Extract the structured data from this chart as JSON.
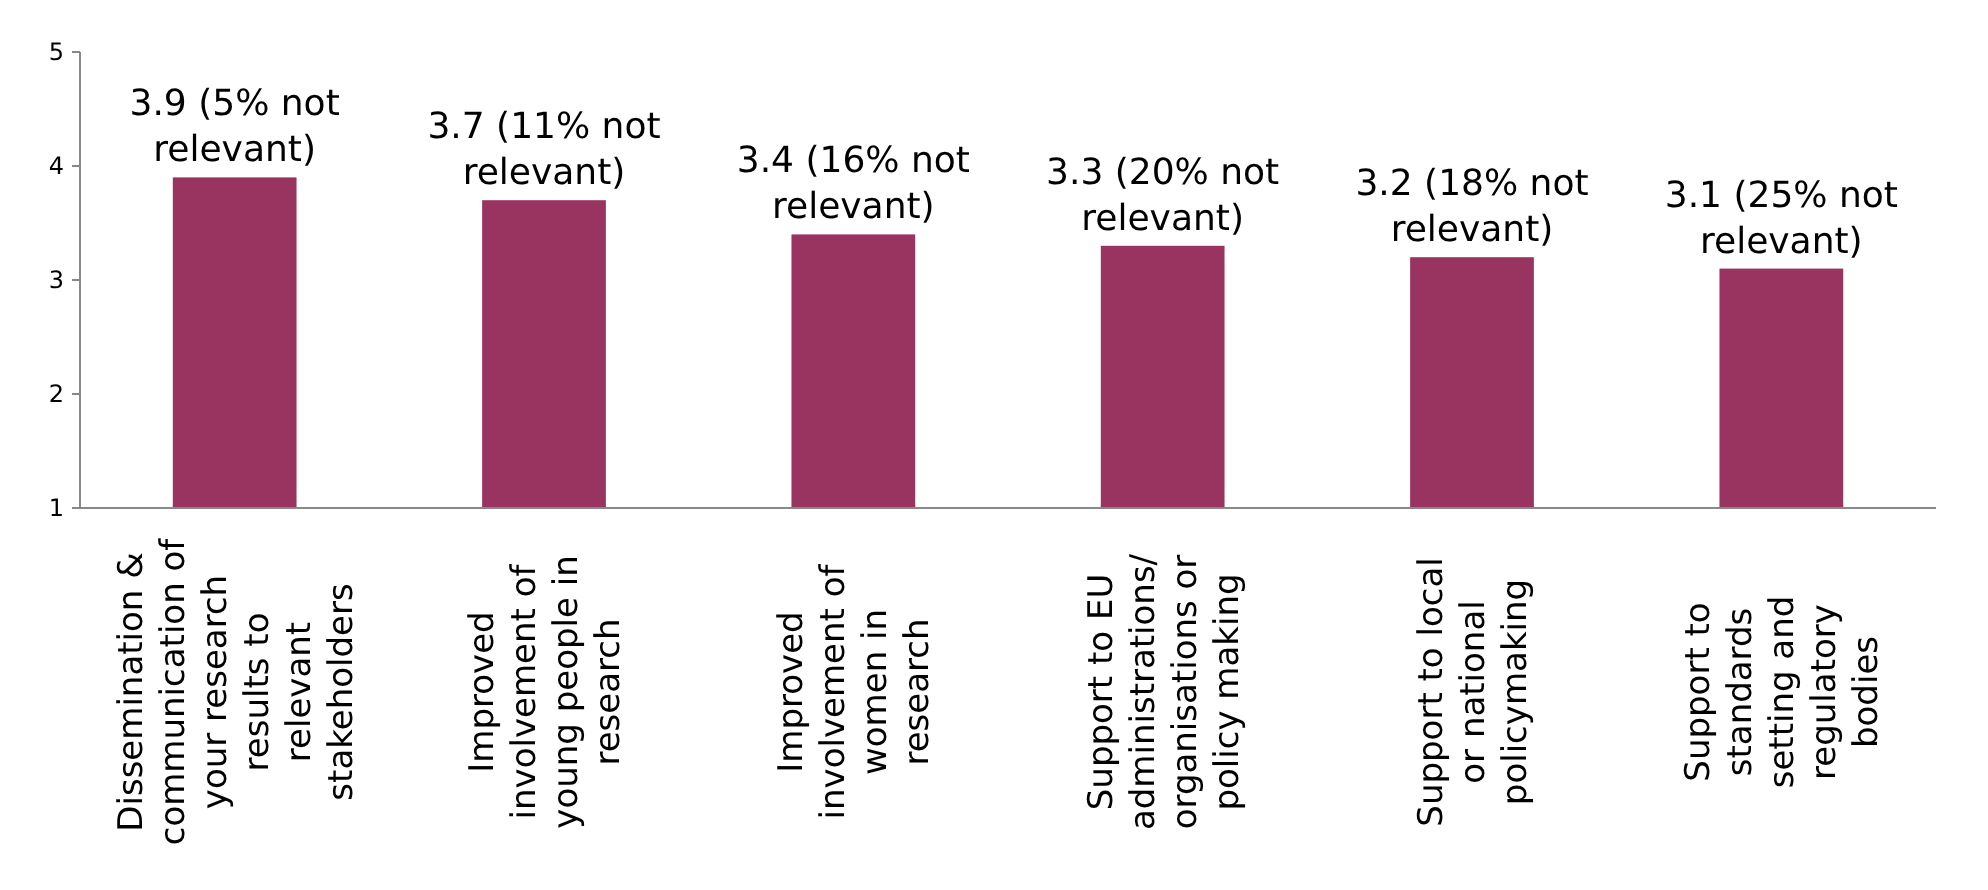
{
  "chart_data": {
    "type": "bar",
    "categories": [
      "Dissemination & communication of your research results to relevant stakeholders",
      "Improved involvement of young people in research",
      "Improved involvement of women in research",
      "Support to EU administrations/ organisations or policy making",
      "Support to local or national policymaking",
      "Support to standards setting and regulatory bodies"
    ],
    "values": [
      3.9,
      3.7,
      3.4,
      3.3,
      3.2,
      3.1
    ],
    "value_labels": [
      "3.9 (5% not relevant)",
      "3.7 (11% not relevant)",
      "3.4 (16% not relevant)",
      "3.3 (20% not relevant)",
      "3.2 (18% not relevant)",
      "3.1 (25% not relevant)"
    ],
    "color": "#993360",
    "ylim": [
      1,
      5
    ],
    "yticks": [
      1,
      2,
      3,
      4,
      5
    ],
    "grid": false
  }
}
